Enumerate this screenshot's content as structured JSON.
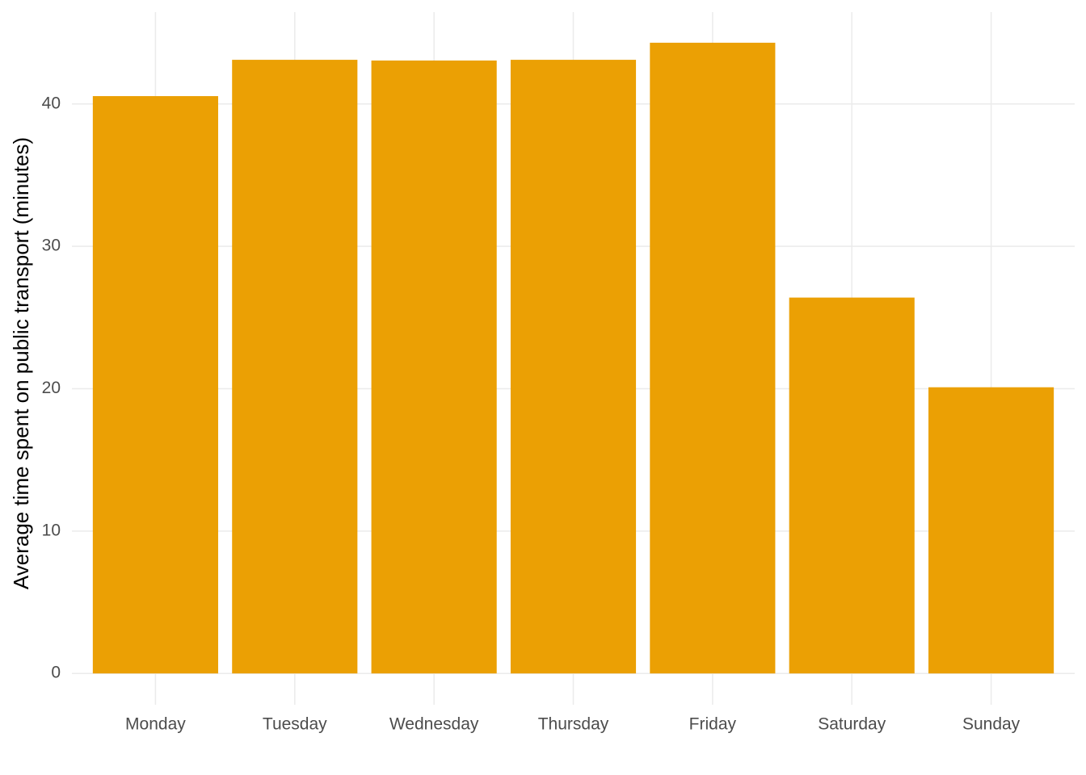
{
  "chart_data": {
    "type": "bar",
    "y_label": "Average time spent on public transport (minutes)",
    "categories": [
      "Monday",
      "Tuesday",
      "Wednesday",
      "Thursday",
      "Friday",
      "Saturday",
      "Sunday"
    ],
    "values": [
      40.55,
      43.1,
      43.05,
      43.1,
      44.3,
      26.4,
      20.1
    ],
    "color": "#eba004",
    "ylim": [
      -2.2,
      46.45
    ],
    "yticks": [
      0,
      10,
      20,
      30,
      40
    ],
    "grid": true
  }
}
